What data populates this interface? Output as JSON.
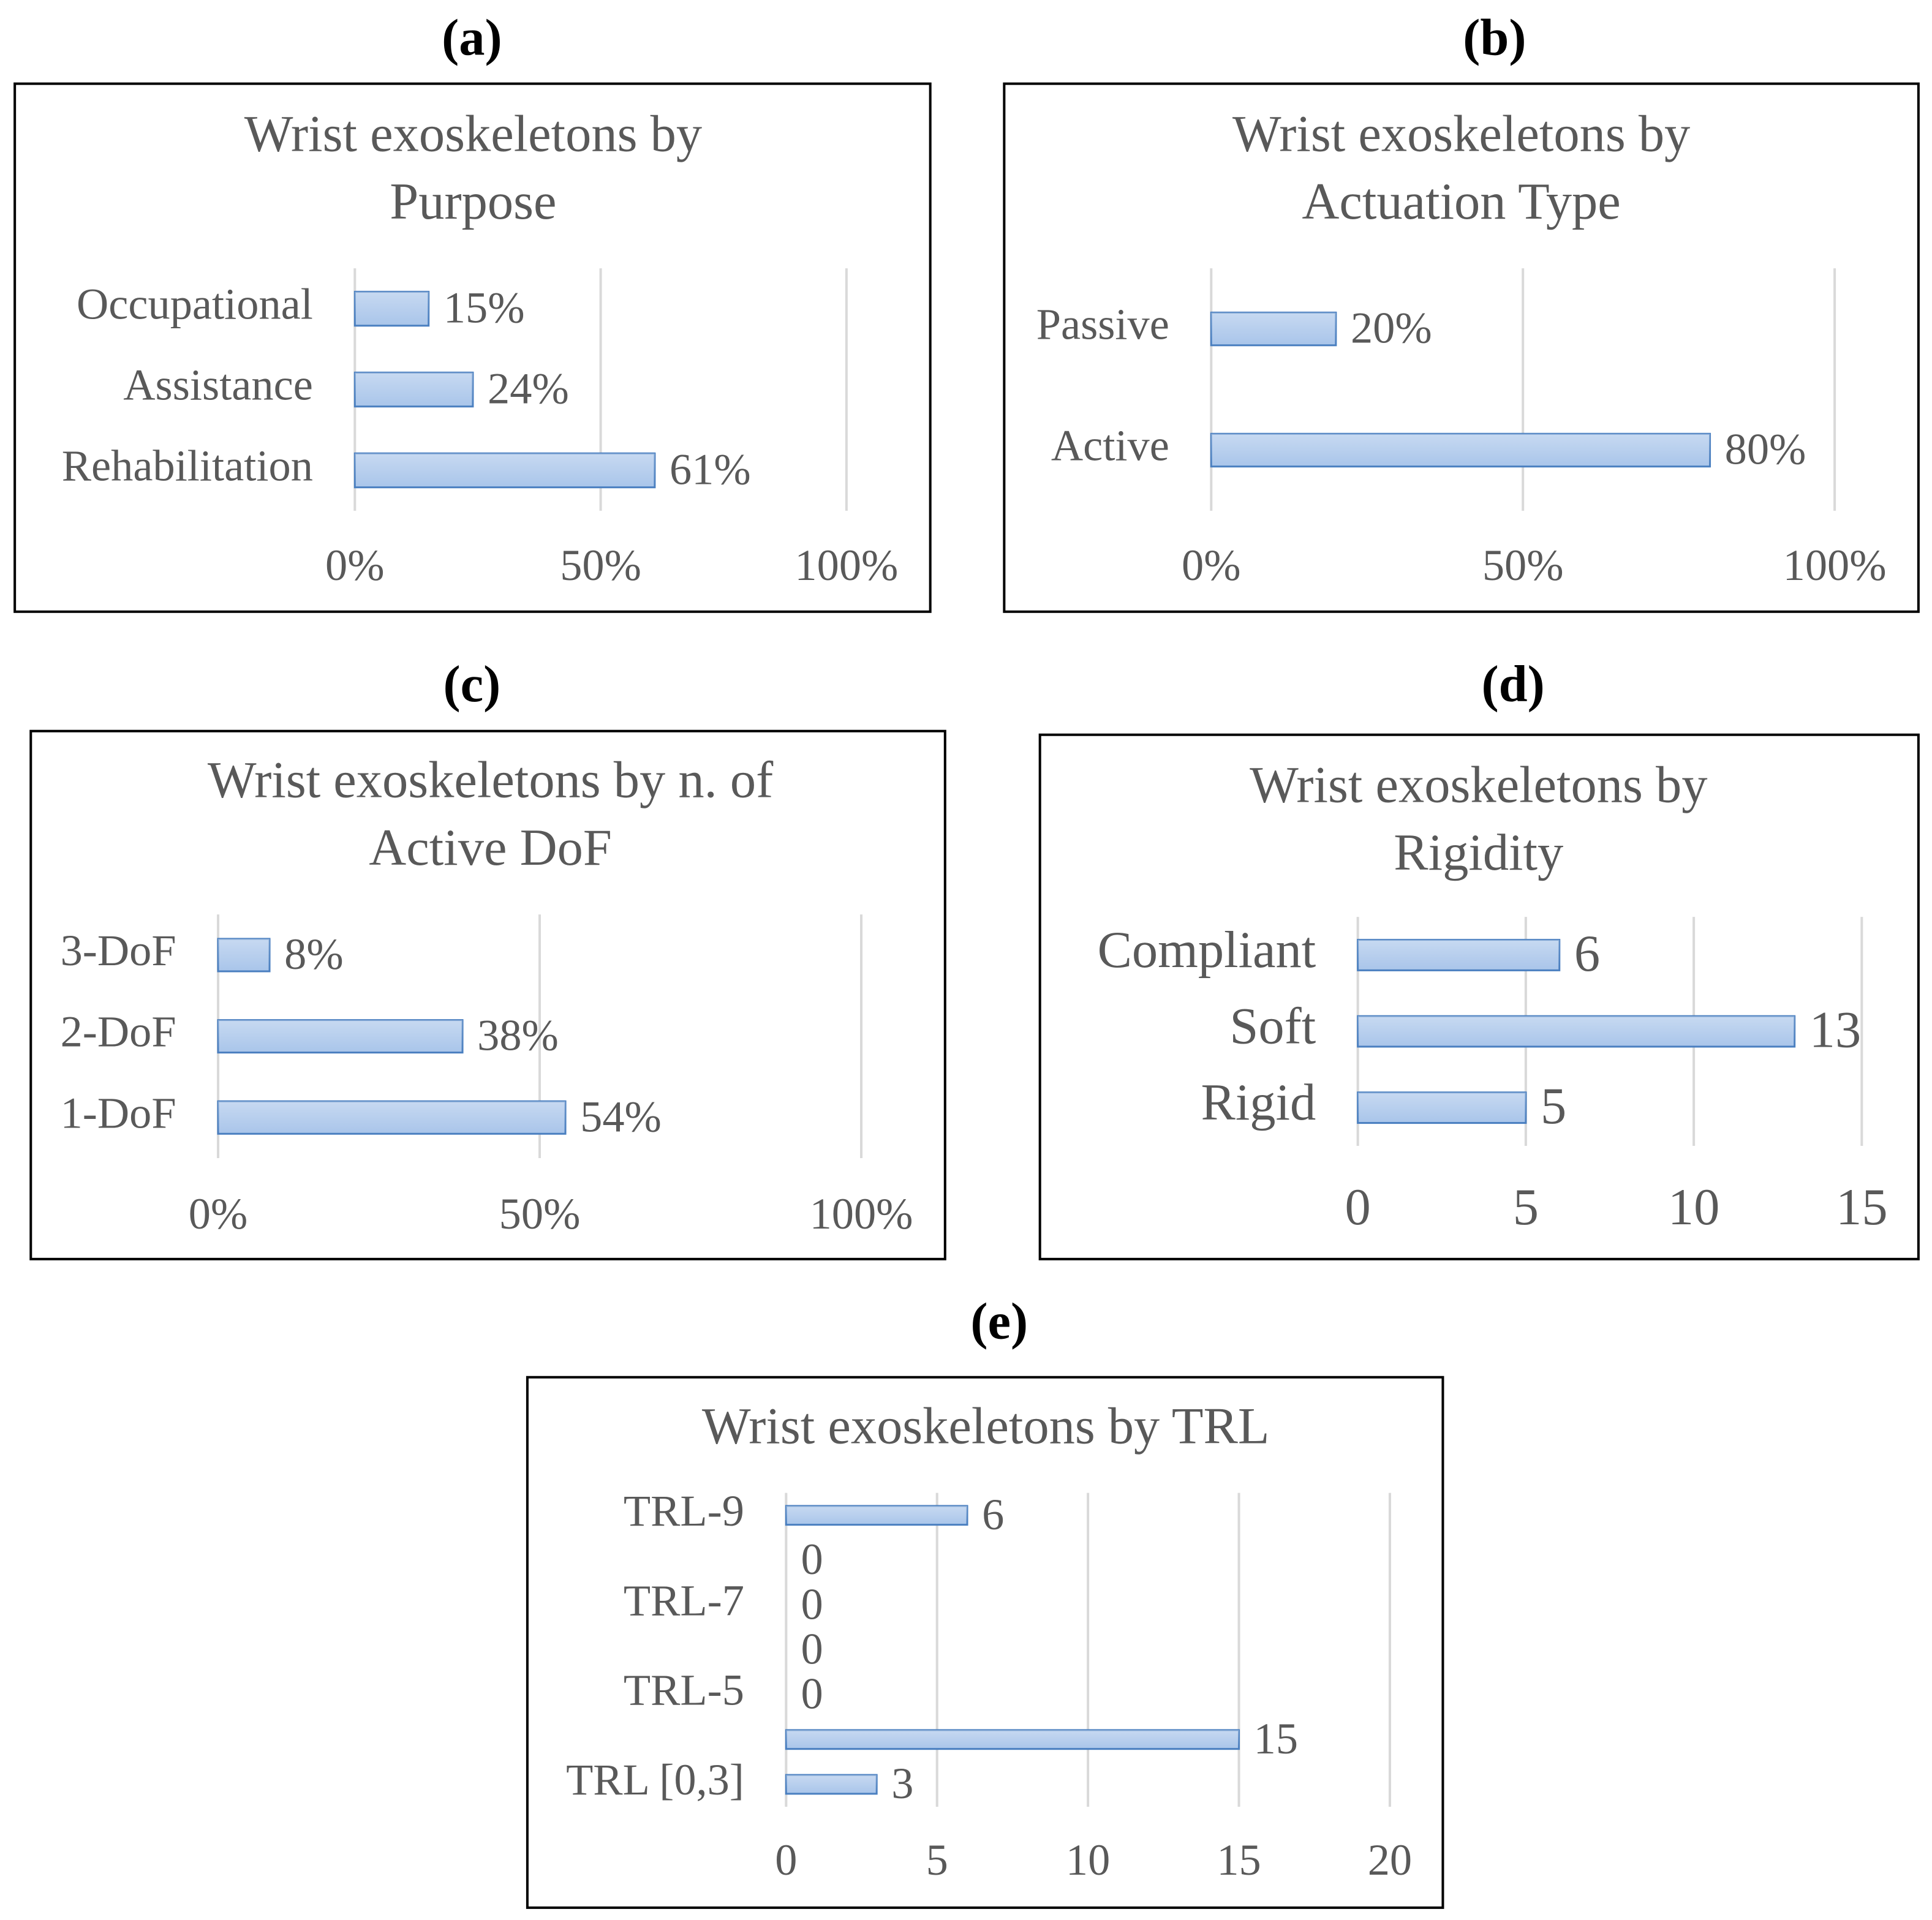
{
  "chart_data": [
    {
      "type": "bar",
      "label": "(a)",
      "title": [
        "Wrist exoskeletons by",
        "Purpose"
      ],
      "categories": [
        "Rehabilitation",
        "Assistance",
        "Occupational"
      ],
      "values": [
        61,
        24,
        15
      ],
      "value_labels": [
        "61%",
        "24%",
        "15%"
      ],
      "color": "#a9c5ea",
      "xlim": [
        0,
        100
      ],
      "xticks": [
        {
          "value": 0,
          "label": "0%"
        },
        {
          "value": 50,
          "label": "50%"
        },
        {
          "value": 100,
          "label": "100%"
        }
      ],
      "grid": true
    },
    {
      "type": "bar",
      "label": "(b)",
      "title": [
        "Wrist exoskeletons by",
        "Actuation Type"
      ],
      "categories": [
        "Active",
        "Passive"
      ],
      "values": [
        80,
        20
      ],
      "value_labels": [
        "80%",
        "20%"
      ],
      "color": "#a9c5ea",
      "xlim": [
        0,
        100
      ],
      "xticks": [
        {
          "value": 0,
          "label": "0%"
        },
        {
          "value": 50,
          "label": "50%"
        },
        {
          "value": 100,
          "label": "100%"
        }
      ],
      "grid": true
    },
    {
      "type": "bar",
      "label": "(c)",
      "title": [
        "Wrist exoskeletons by n. of",
        "Active DoF"
      ],
      "categories": [
        "1-DoF",
        "2-DoF",
        "3-DoF"
      ],
      "values": [
        54,
        38,
        8
      ],
      "value_labels": [
        "54%",
        "38%",
        "8%"
      ],
      "color": "#a9c5ea",
      "xlim": [
        0,
        100
      ],
      "xticks": [
        {
          "value": 0,
          "label": "0%"
        },
        {
          "value": 50,
          "label": "50%"
        },
        {
          "value": 100,
          "label": "100%"
        }
      ],
      "grid": true
    },
    {
      "type": "bar",
      "label": "(d)",
      "title": [
        "Wrist exoskeletons by",
        "Rigidity"
      ],
      "categories": [
        "Rigid",
        "Soft",
        "Compliant"
      ],
      "values": [
        5,
        13,
        6
      ],
      "color": "#a9c5ea",
      "xlim": [
        0,
        15
      ],
      "xticks": [
        0,
        5,
        10,
        15
      ],
      "grid": true
    },
    {
      "type": "bar",
      "label": "(e)",
      "title": [
        "Wrist exoskeletons by TRL"
      ],
      "categories": [
        "TRL [0,3]",
        null,
        "TRL-5",
        null,
        "TRL-7",
        null,
        "TRL-9"
      ],
      "values": [
        3,
        15,
        0,
        0,
        0,
        0,
        6
      ],
      "color": "#a9c5ea",
      "xlim": [
        0,
        20
      ],
      "xticks": [
        0,
        5,
        10,
        15,
        20
      ],
      "grid": true
    }
  ]
}
